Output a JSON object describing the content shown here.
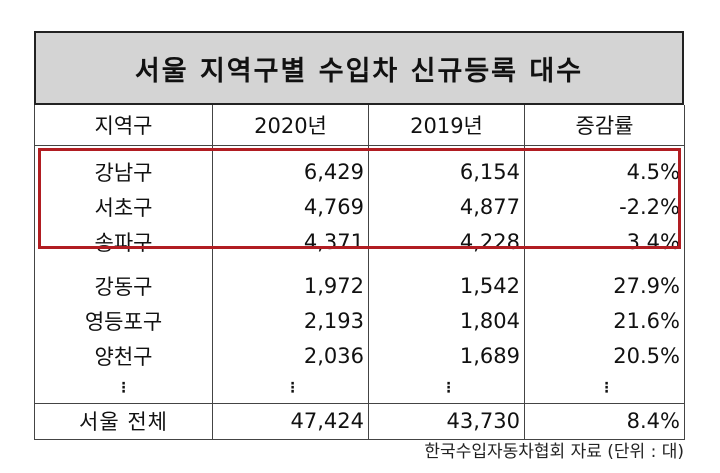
{
  "title": "서울 지역구별 수입차 신규등록 대수",
  "headers": [
    "지역구",
    "2020년",
    "2019년",
    "증감률"
  ],
  "highlighted_rows": [
    {
      "region": "강남구",
      "y2020": "6,429",
      "y2019": "6,154",
      "change": "4.5%"
    },
    {
      "region": "서초구",
      "y2020": "4,769",
      "y2019": "4,877",
      "change": "-2.2%"
    },
    {
      "region": "송파구",
      "y2020": "4,371",
      "y2019": "4,228",
      "change": "3.4%"
    }
  ],
  "other_rows": [
    {
      "region": "강동구",
      "y2020": "1,972",
      "y2019": "1,542",
      "change": "27.9%"
    },
    {
      "region": "영등포구",
      "y2020": "2,193",
      "y2019": "1,804",
      "change": "21.6%"
    },
    {
      "region": "양천구",
      "y2020": "2,036",
      "y2019": "1,689",
      "change": "20.5%"
    }
  ],
  "ellipsis": "⋮",
  "total": {
    "region": "서울 전체",
    "y2020": "47,424",
    "y2019": "43,730",
    "change": "8.4%"
  },
  "source": "한국수입자동차협회 자료 (단위 : 대)",
  "colors": {
    "title_bg": "#d4d4d4",
    "highlight_border": "#b11d22"
  }
}
